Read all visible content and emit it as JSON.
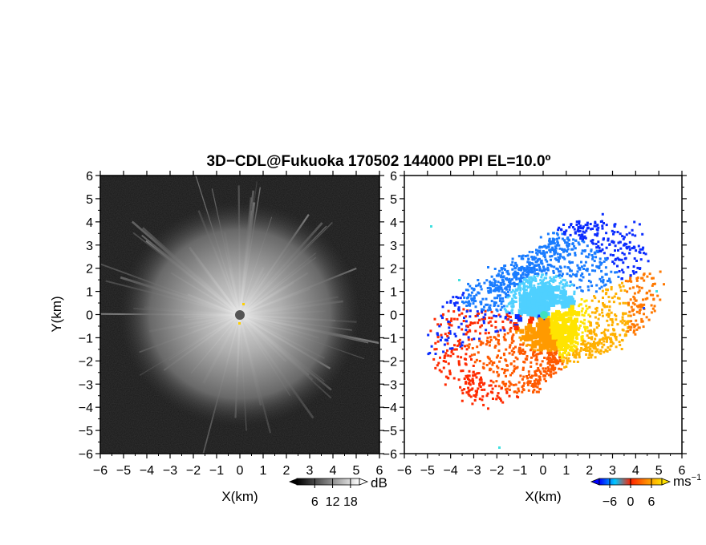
{
  "title": "3D−CDL@Fukuoka 170502 144000 PPI EL=10.0º",
  "chart_data": [
    {
      "type": "heatmap",
      "name": "reflectivity",
      "xlabel": "X(km)",
      "ylabel": "Y(km)",
      "xlim": [
        -6,
        6
      ],
      "ylim": [
        -6,
        6
      ],
      "x_ticks": [
        "−6",
        "−5",
        "−4",
        "−3",
        "−2",
        "−1",
        "0",
        "1",
        "2",
        "3",
        "4",
        "5",
        "6"
      ],
      "y_ticks": [
        "−6",
        "−5",
        "−4",
        "−3",
        "−2",
        "−1",
        "0",
        "1",
        "2",
        "3",
        "4",
        "5",
        "6"
      ],
      "colorbar": {
        "unit": "dB",
        "ticks": [
          "6",
          "12",
          "18"
        ],
        "values": [
          6,
          12,
          18
        ],
        "range": [
          0,
          21
        ],
        "colormap": "grayscale",
        "colors": [
          "#000000",
          "#ffffff"
        ],
        "extend_both": true
      }
    },
    {
      "type": "heatmap",
      "name": "doppler-velocity",
      "xlabel": "X(km)",
      "ylabel": "",
      "xlim": [
        -6,
        6
      ],
      "ylim": [
        -6,
        6
      ],
      "x_ticks": [
        "−6",
        "−5",
        "−4",
        "−3",
        "−2",
        "−1",
        "0",
        "1",
        "2",
        "3",
        "4",
        "5",
        "6"
      ],
      "y_ticks": [
        "−6",
        "−5",
        "−4",
        "−3",
        "−2",
        "−1",
        "0",
        "1",
        "2",
        "3",
        "4",
        "5",
        "6"
      ],
      "colorbar": {
        "unit": "ms",
        "unit_exponent": "−1",
        "ticks": [
          "−6",
          "0",
          "6"
        ],
        "values": [
          -6,
          0,
          6
        ],
        "range": [
          -9,
          9
        ],
        "colormap": "blue-cyan-red-orange-yellow",
        "colors": [
          "#0000ff",
          "#00c8ff",
          "#ff2200",
          "#ff8800",
          "#ffe000"
        ],
        "extend_both": true
      }
    }
  ]
}
